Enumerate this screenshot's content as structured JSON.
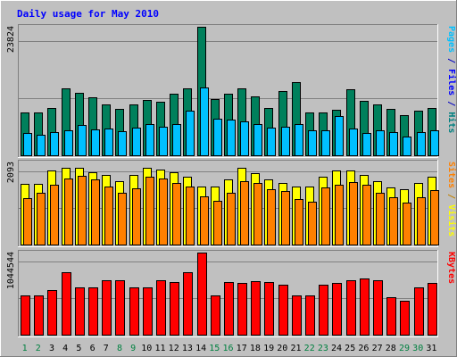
{
  "chart_data": {
    "type": "bar",
    "title": "Daily usage for May 2010",
    "categories": [
      "1",
      "2",
      "3",
      "4",
      "5",
      "6",
      "7",
      "8",
      "9",
      "10",
      "11",
      "12",
      "13",
      "14",
      "15",
      "16",
      "17",
      "18",
      "19",
      "20",
      "21",
      "22",
      "23",
      "24",
      "25",
      "26",
      "27",
      "28",
      "29",
      "30",
      "31"
    ],
    "weekend_days": [
      "1",
      "2",
      "8",
      "9",
      "15",
      "16",
      "22",
      "23",
      "29",
      "30"
    ],
    "panels": [
      {
        "id": "pages-files-hits",
        "ymax_label": "23824",
        "ymax": 23824,
        "y_title_parts": [
          {
            "text": "Pages",
            "color": "#00c0ff"
          },
          {
            "text": " / ",
            "color": "#0000c0"
          },
          {
            "text": "Files",
            "color": "#0000ff"
          },
          {
            "text": " / ",
            "color": "#0000c0"
          },
          {
            "text": "Hits",
            "color": "#008080"
          }
        ],
        "series": [
          {
            "name": "Hits",
            "color": "#00805c",
            "values": [
              7990,
              7990,
              8840,
              12410,
              11560,
              10710,
              9350,
              8670,
              9350,
              10200,
              9860,
              11390,
              12410,
              23824,
              10370,
              11390,
              12410,
              10880,
              8840,
              11900,
              13600,
              7990,
              7990,
              8500,
              12240,
              10030,
              9350,
              8670,
              7480,
              8330,
              8840
            ]
          },
          {
            "name": "Files",
            "color": "#00c0ff",
            "values": [
              4080,
              3740,
              4250,
              4590,
              5610,
              4760,
              4930,
              4420,
              5100,
              5780,
              5270,
              5780,
              8330,
              12580,
              6800,
              6630,
              6290,
              5780,
              5100,
              5270,
              5780,
              4590,
              4590,
              7310,
              4930,
              4080,
              4590,
              4250,
              3400,
              4250,
              4590
            ]
          },
          {
            "name": "Pages",
            "color": "#00c0ff",
            "values": []
          }
        ]
      },
      {
        "id": "visits-sites",
        "ymax_label": "2093",
        "ymax": 2093,
        "y_title_parts": [
          {
            "text": "Sites",
            "color": "#ff8000"
          },
          {
            "text": " / ",
            "color": "#c08000"
          },
          {
            "text": "Visits",
            "color": "#ffff00"
          }
        ],
        "series": [
          {
            "name": "Visits",
            "color": "#ffff00",
            "values": [
              1550,
              1550,
              1890,
              1950,
              1950,
              1840,
              1780,
              1610,
              1780,
              1950,
              1900,
              1840,
              1720,
              1480,
              1480,
              1660,
              1950,
              1810,
              1660,
              1560,
              1490,
              1480,
              1740,
              1890,
              1880,
              1780,
              1610,
              1450,
              1400,
              1560,
              1720
            ]
          },
          {
            "name": "Sites",
            "color": "#ff8000",
            "values": [
              1180,
              1330,
              1530,
              1680,
              1760,
              1670,
              1490,
              1330,
              1440,
              1720,
              1690,
              1580,
              1490,
              1230,
              1120,
              1320,
              1610,
              1580,
              1400,
              1360,
              1150,
              1100,
              1460,
              1520,
              1590,
              1530,
              1320,
              1200,
              1060,
              1200,
              1380
            ]
          }
        ]
      },
      {
        "id": "kbytes",
        "ymax_label": "1044544",
        "ymax": 1044544,
        "y_title_parts": [
          {
            "text": "KBytes",
            "color": "#ff0000"
          }
        ],
        "series": [
          {
            "name": "KBytes",
            "color": "#ff0000",
            "values": [
              502000,
              502000,
              565000,
              791000,
              597000,
              597000,
              697000,
              697000,
              602000,
              602000,
              697000,
              665000,
              791000,
              1044544,
              502000,
              665000,
              653000,
              684000,
              672000,
              640000,
              502000,
              502000,
              640000,
              653000,
              697000,
              710000,
              697000,
              477000,
              433000,
              597000,
              653000
            ]
          }
        ]
      }
    ]
  }
}
